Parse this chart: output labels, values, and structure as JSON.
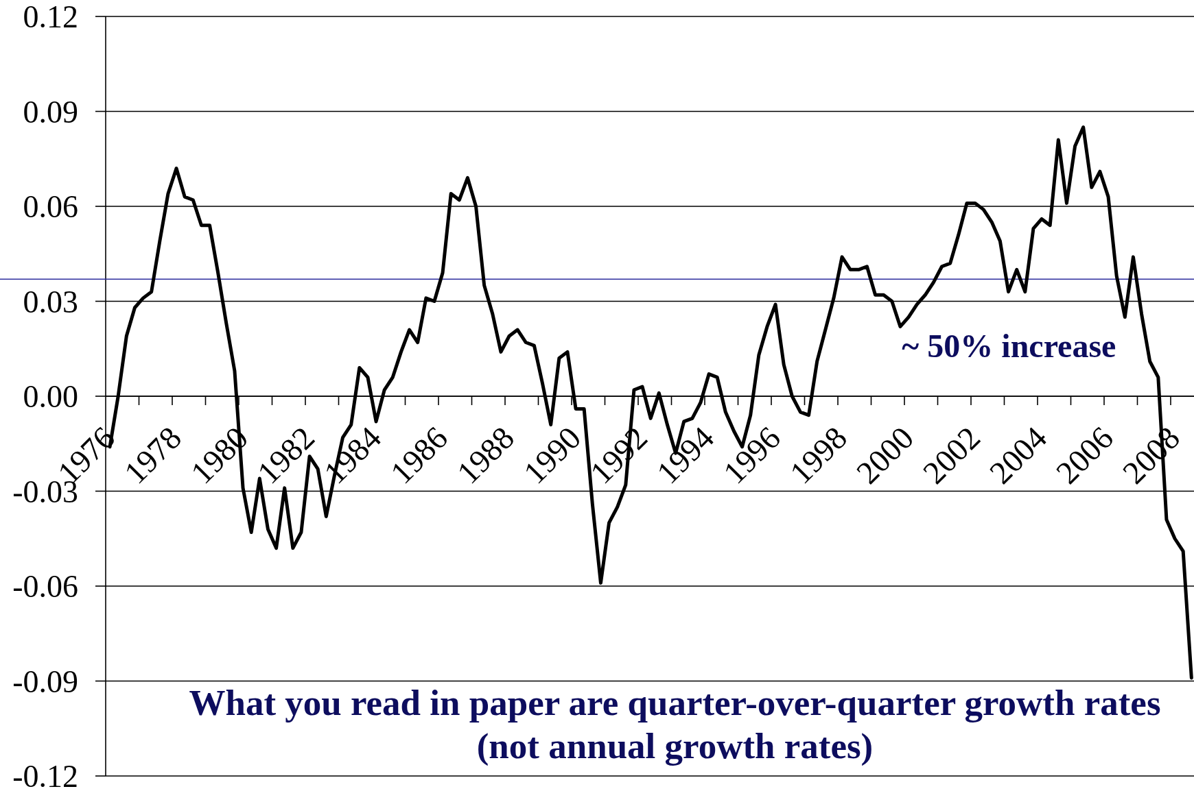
{
  "chart_data": {
    "type": "line",
    "categories": [
      "1976",
      null,
      null,
      null,
      null,
      null,
      null,
      null,
      "1978",
      null,
      null,
      null,
      null,
      null,
      null,
      null,
      "1980",
      null,
      null,
      null,
      null,
      null,
      null,
      null,
      "1982",
      null,
      null,
      null,
      null,
      null,
      null,
      null,
      "1984",
      null,
      null,
      null,
      null,
      null,
      null,
      null,
      "1986",
      null,
      null,
      null,
      null,
      null,
      null,
      null,
      "1988",
      null,
      null,
      null,
      null,
      null,
      null,
      null,
      "1990",
      null,
      null,
      null,
      null,
      null,
      null,
      null,
      "1992",
      null,
      null,
      null,
      null,
      null,
      null,
      null,
      "1994",
      null,
      null,
      null,
      null,
      null,
      null,
      null,
      "1996",
      null,
      null,
      null,
      null,
      null,
      null,
      null,
      "1998",
      null,
      null,
      null,
      null,
      null,
      null,
      null,
      "2000",
      null,
      null,
      null,
      null,
      null,
      null,
      null,
      "2002",
      null,
      null,
      null,
      null,
      null,
      null,
      null,
      "2004",
      null,
      null,
      null,
      null,
      null,
      null,
      null,
      "2006",
      null,
      null,
      null,
      null,
      null,
      null,
      null,
      "2008",
      null,
      null
    ],
    "series": [
      {
        "color": "#000000",
        "values": [
          -0.016,
          0.0,
          0.019,
          0.028,
          0.031,
          0.033,
          0.049,
          0.064,
          0.072,
          0.063,
          0.062,
          0.054,
          0.054,
          0.039,
          0.023,
          0.008,
          -0.029,
          -0.043,
          -0.026,
          -0.042,
          -0.048,
          -0.029,
          -0.048,
          -0.043,
          -0.019,
          -0.023,
          -0.038,
          -0.025,
          -0.013,
          -0.009,
          0.009,
          0.006,
          -0.008,
          0.002,
          0.006,
          0.014,
          0.021,
          0.017,
          0.031,
          0.03,
          0.039,
          0.064,
          0.062,
          0.069,
          0.06,
          0.035,
          0.026,
          0.014,
          0.019,
          0.021,
          0.017,
          0.016,
          0.004,
          -0.009,
          0.012,
          0.014,
          -0.004,
          -0.004,
          -0.034,
          -0.059,
          -0.04,
          -0.035,
          -0.028,
          0.002,
          0.003,
          -0.007,
          0.001,
          -0.009,
          -0.018,
          -0.008,
          -0.007,
          -0.002,
          0.007,
          0.006,
          -0.005,
          -0.011,
          -0.016,
          -0.006,
          0.013,
          0.022,
          0.029,
          0.01,
          0.0,
          -0.005,
          -0.006,
          0.011,
          0.021,
          0.031,
          0.044,
          0.04,
          0.04,
          0.041,
          0.032,
          0.032,
          0.03,
          0.022,
          0.025,
          0.029,
          0.032,
          0.036,
          0.041,
          0.042,
          0.051,
          0.061,
          0.061,
          0.059,
          0.055,
          0.049,
          0.033,
          0.04,
          0.033,
          0.053,
          0.056,
          0.054,
          0.081,
          0.061,
          0.079,
          0.085,
          0.066,
          0.071,
          0.063,
          0.038,
          0.025,
          0.044,
          0.026,
          0.011,
          0.006,
          -0.039,
          -0.045,
          -0.049,
          -0.089
        ]
      }
    ],
    "ylim": [
      -0.12,
      0.12
    ],
    "yticks": [
      -0.12,
      -0.09,
      -0.06,
      -0.03,
      {
        "value": 0,
        "label": "0.00"
      },
      0.03,
      0.06,
      0.09,
      0.12
    ],
    "grid": "y",
    "ref_lines": [
      {
        "axis": "y",
        "value": 0.037,
        "color": "#2e2e9e"
      }
    ],
    "annotations": [
      "~ 50% increase",
      "What you read in paper are quarter-over-quarter growth rates\n(not annual growth rates)"
    ]
  }
}
